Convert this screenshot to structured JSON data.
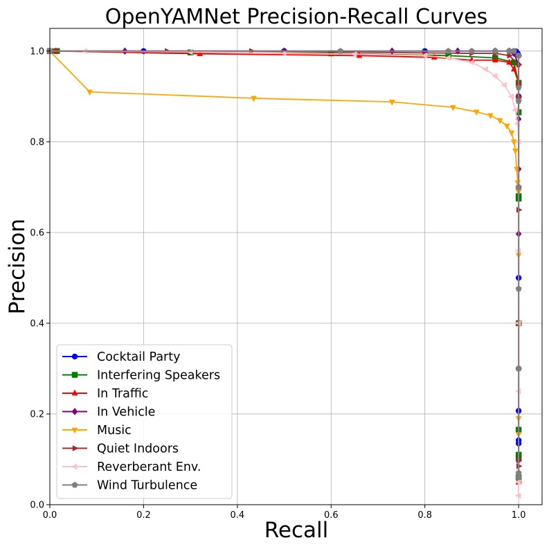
{
  "chart_data": {
    "type": "line",
    "title": "OpenYAMNet Precision-Recall Curves",
    "xlabel": "Recall",
    "ylabel": "Precision",
    "xlim": [
      0.0,
      1.05
    ],
    "ylim": [
      0.0,
      1.05
    ],
    "xticks": [
      0.0,
      0.2,
      0.4,
      0.6,
      0.8,
      1.0
    ],
    "yticks": [
      0.0,
      0.2,
      0.4,
      0.6,
      0.8,
      1.0
    ],
    "xtick_labels": [
      "0.0",
      "0.2",
      "0.4",
      "0.6",
      "0.8",
      "1.0"
    ],
    "ytick_labels": [
      "0.0",
      "0.2",
      "0.4",
      "0.6",
      "0.8",
      "1.0"
    ],
    "grid": true,
    "legend_position": "lower-left",
    "series": [
      {
        "name": "Cocktail Party",
        "color": "#0000ff",
        "marker": "circle",
        "points": [
          [
            0.0,
            1.0
          ],
          [
            0.2,
            1.0
          ],
          [
            0.5,
            1.0
          ],
          [
            0.8,
            1.0
          ],
          [
            0.95,
            1.0
          ],
          [
            0.98,
            1.0
          ],
          [
            0.99,
            1.0
          ],
          [
            0.995,
            0.999
          ],
          [
            0.998,
            0.995
          ],
          [
            1.0,
            0.99
          ],
          [
            1.0,
            0.9
          ],
          [
            1.0,
            0.7
          ],
          [
            1.0,
            0.5
          ],
          [
            1.0,
            0.3
          ],
          [
            1.0,
            0.207
          ],
          [
            1.0,
            0.142
          ],
          [
            1.0,
            0.135
          ],
          [
            1.0,
            0.06
          ]
        ]
      },
      {
        "name": "Interfering Speakers",
        "color": "#008000",
        "marker": "square",
        "points": [
          [
            0.0,
            1.0
          ],
          [
            0.015,
            1.0
          ],
          [
            0.3,
            0.997
          ],
          [
            0.6,
            0.995
          ],
          [
            0.85,
            0.99
          ],
          [
            0.95,
            0.985
          ],
          [
            0.99,
            0.975
          ],
          [
            1.0,
            0.93
          ],
          [
            1.0,
            0.865
          ],
          [
            1.0,
            0.68
          ],
          [
            1.0,
            0.675
          ],
          [
            1.0,
            0.4
          ],
          [
            1.0,
            0.165
          ],
          [
            1.0,
            0.11
          ],
          [
            1.0,
            0.105
          ],
          [
            1.0,
            0.06
          ]
        ]
      },
      {
        "name": "In Traffic",
        "color": "#ff0000",
        "marker": "triangle-up",
        "points": [
          [
            0.0,
            1.0
          ],
          [
            0.013,
            1.0
          ],
          [
            0.32,
            0.994
          ],
          [
            0.66,
            0.99
          ],
          [
            0.82,
            0.986
          ],
          [
            0.9,
            0.98
          ],
          [
            0.95,
            0.98
          ],
          [
            0.98,
            0.975
          ],
          [
            0.99,
            0.96
          ],
          [
            1.0,
            0.93
          ],
          [
            1.0,
            0.9
          ],
          [
            1.0,
            0.7
          ],
          [
            1.0,
            0.4
          ],
          [
            1.0,
            0.1
          ],
          [
            1.0,
            0.05
          ]
        ]
      },
      {
        "name": "In Vehicle",
        "color": "#800080",
        "marker": "diamond",
        "points": [
          [
            0.0,
            1.0
          ],
          [
            0.16,
            1.0
          ],
          [
            0.5,
            1.0
          ],
          [
            0.73,
            1.0
          ],
          [
            0.87,
            1.0
          ],
          [
            0.95,
            1.0
          ],
          [
            0.98,
            1.0
          ],
          [
            0.99,
            0.995
          ],
          [
            1.0,
            0.97
          ],
          [
            1.0,
            0.85
          ],
          [
            1.0,
            0.74
          ],
          [
            1.0,
            0.597
          ],
          [
            1.0,
            0.4
          ],
          [
            1.0,
            0.098
          ],
          [
            1.0,
            0.06
          ]
        ]
      },
      {
        "name": "Music",
        "color": "#ffa500",
        "marker": "triangle-down",
        "points": [
          [
            0.0,
            1.0
          ],
          [
            0.085,
            0.91
          ],
          [
            0.435,
            0.896
          ],
          [
            0.73,
            0.888
          ],
          [
            0.86,
            0.876
          ],
          [
            0.91,
            0.866
          ],
          [
            0.94,
            0.858
          ],
          [
            0.96,
            0.847
          ],
          [
            0.975,
            0.835
          ],
          [
            0.985,
            0.82
          ],
          [
            0.99,
            0.8
          ],
          [
            0.993,
            0.78
          ],
          [
            0.996,
            0.74
          ],
          [
            0.998,
            0.71
          ],
          [
            1.0,
            0.69
          ],
          [
            1.0,
            0.55
          ],
          [
            1.0,
            0.4
          ],
          [
            1.0,
            0.19
          ],
          [
            1.0,
            0.155
          ],
          [
            1.0,
            0.05
          ]
        ]
      },
      {
        "name": "Quiet Indoors",
        "color": "#a52a2a",
        "marker": "triangle-right",
        "points": [
          [
            0.0,
            1.0
          ],
          [
            0.01,
            1.0
          ],
          [
            0.25,
            1.0
          ],
          [
            0.43,
            1.0
          ],
          [
            0.62,
            0.998
          ],
          [
            0.8,
            0.996
          ],
          [
            0.9,
            0.995
          ],
          [
            0.95,
            0.995
          ],
          [
            0.98,
            0.99
          ],
          [
            1.0,
            0.97
          ],
          [
            1.0,
            0.9
          ],
          [
            1.0,
            0.65
          ],
          [
            1.0,
            0.4
          ],
          [
            1.0,
            0.098
          ],
          [
            1.0,
            0.085
          ],
          [
            1.0,
            0.05
          ]
        ]
      },
      {
        "name": "Reverberant Env.",
        "color": "#ffc0cb",
        "marker": "triangle-left",
        "points": [
          [
            0.0,
            1.0
          ],
          [
            0.075,
            1.0
          ],
          [
            0.3,
            0.998
          ],
          [
            0.5,
            0.995
          ],
          [
            0.65,
            0.993
          ],
          [
            0.8,
            0.99
          ],
          [
            0.85,
            0.985
          ],
          [
            0.9,
            0.975
          ],
          [
            0.93,
            0.96
          ],
          [
            0.95,
            0.945
          ],
          [
            0.97,
            0.925
          ],
          [
            0.985,
            0.9
          ],
          [
            0.993,
            0.87
          ],
          [
            0.998,
            0.84
          ],
          [
            1.0,
            0.8
          ],
          [
            1.0,
            0.7
          ],
          [
            1.0,
            0.56
          ],
          [
            1.0,
            0.4
          ],
          [
            1.0,
            0.25
          ],
          [
            1.0,
            0.05
          ],
          [
            1.0,
            0.02
          ]
        ]
      },
      {
        "name": "Wind Turbulence",
        "color": "#808080",
        "marker": "pentagon",
        "points": [
          [
            0.0,
            1.0
          ],
          [
            0.62,
            1.0
          ],
          [
            0.85,
            1.0
          ],
          [
            0.9,
            1.0
          ],
          [
            0.95,
            1.0
          ],
          [
            0.98,
            1.0
          ],
          [
            0.99,
            1.0
          ],
          [
            1.0,
            0.99
          ],
          [
            1.0,
            0.92
          ],
          [
            1.0,
            0.89
          ],
          [
            1.0,
            0.7
          ],
          [
            1.0,
            0.476
          ],
          [
            1.0,
            0.3
          ],
          [
            1.0,
            0.07
          ],
          [
            1.0,
            0.06
          ]
        ]
      }
    ]
  }
}
